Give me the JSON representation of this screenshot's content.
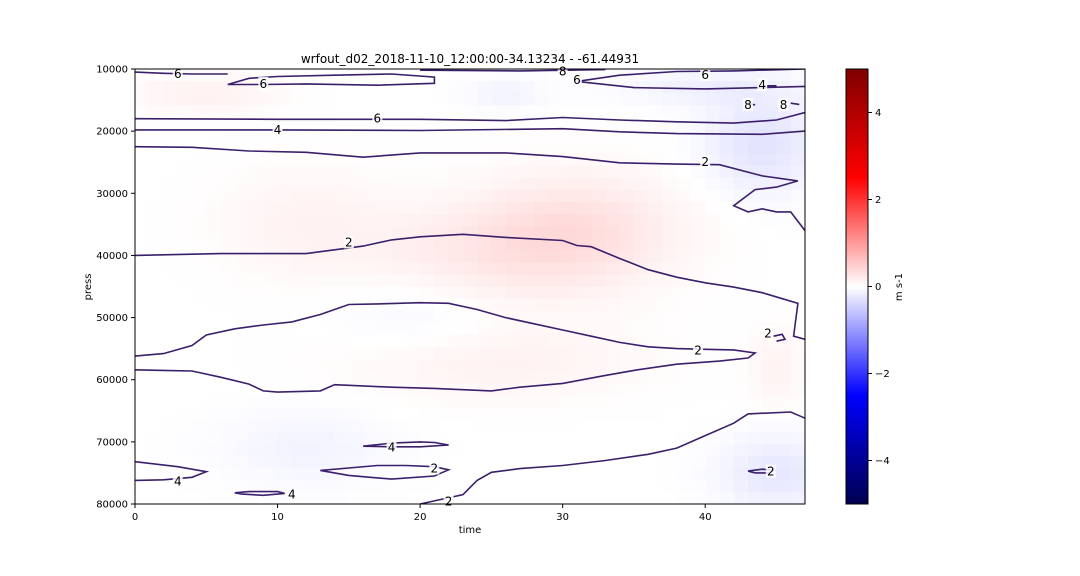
{
  "chart_data": {
    "type": "heatmap",
    "title": "wrfout_d02_2018-11-10_12:00:00-34.13234 - -61.44931",
    "xlabel": "time",
    "ylabel": "press",
    "xlim": [
      0,
      47
    ],
    "ylim": [
      10000,
      80000
    ],
    "y_inverted": true,
    "x_ticks": [
      "0",
      "10",
      "20",
      "30",
      "40"
    ],
    "x_tick_values": [
      0,
      10,
      20,
      30,
      40
    ],
    "y_ticks": [
      "10000",
      "20000",
      "30000",
      "40000",
      "50000",
      "60000",
      "70000",
      "80000"
    ],
    "y_tick_values": [
      10000,
      20000,
      30000,
      40000,
      50000,
      60000,
      70000,
      80000
    ],
    "colormap": "seismic",
    "colorbar": {
      "label": "m s-1",
      "range": [
        -5,
        5
      ],
      "ticks": [
        "4",
        "2",
        "0",
        "−2",
        "−4"
      ],
      "tick_values": [
        4,
        2,
        0,
        -2,
        -4
      ],
      "colors": [
        "#000080",
        "#0000ff",
        "#ffffff",
        "#ff0000",
        "#800000"
      ]
    },
    "grid": false,
    "contour_color": "#3b1f6b",
    "field_blobs": [
      {
        "t": 31,
        "p": 36000,
        "st": 7,
        "sp": 9000,
        "v": 0.75
      },
      {
        "t": 24,
        "p": 40000,
        "st": 8,
        "sp": 8000,
        "v": 0.45
      },
      {
        "t": 12,
        "p": 35000,
        "st": 6,
        "sp": 9000,
        "v": 0.3
      },
      {
        "t": 25,
        "p": 57000,
        "st": 10,
        "sp": 6000,
        "v": 0.35
      },
      {
        "t": 45,
        "p": 58000,
        "st": 2,
        "sp": 6000,
        "v": 0.3
      },
      {
        "t": 5,
        "p": 14000,
        "st": 5,
        "sp": 3000,
        "v": 0.35
      },
      {
        "t": 44,
        "p": 22000,
        "st": 4,
        "sp": 8000,
        "v": -0.7
      },
      {
        "t": 45,
        "p": 75000,
        "st": 4,
        "sp": 6000,
        "v": -0.6
      },
      {
        "t": 20,
        "p": 50000,
        "st": 6,
        "sp": 7000,
        "v": -0.25
      },
      {
        "t": 12,
        "p": 71000,
        "st": 6,
        "sp": 6000,
        "v": -0.3
      },
      {
        "t": 40,
        "p": 13000,
        "st": 6,
        "sp": 3000,
        "v": -0.35
      },
      {
        "t": 26,
        "p": 14000,
        "st": 3,
        "sp": 2500,
        "v": -0.3
      }
    ],
    "contours": [
      {
        "level": 6,
        "points": [
          [
            0,
            10500
          ],
          [
            2,
            10700
          ],
          [
            4,
            10800
          ],
          [
            6.5,
            10800
          ]
        ]
      },
      {
        "level": 6,
        "points": [
          [
            6.5,
            12500
          ],
          [
            8,
            11500
          ],
          [
            10,
            11200
          ],
          [
            14,
            11000
          ],
          [
            18,
            10800
          ],
          [
            21,
            11300
          ],
          [
            21,
            12300
          ],
          [
            17,
            12600
          ],
          [
            12,
            12400
          ],
          [
            9,
            12500
          ],
          [
            6.5,
            12500
          ]
        ]
      },
      {
        "level": 8,
        "points": [
          [
            20,
            10200
          ],
          [
            27,
            10300
          ],
          [
            33,
            10100
          ]
        ]
      },
      {
        "level": 6,
        "points": [
          [
            31,
            12000
          ],
          [
            34,
            11000
          ],
          [
            38,
            10400
          ],
          [
            42,
            10300
          ],
          [
            47,
            10000
          ]
        ]
      },
      {
        "level": 6,
        "points": [
          [
            31,
            12000
          ],
          [
            35,
            13000
          ],
          [
            40,
            13200
          ],
          [
            44,
            13000
          ],
          [
            47,
            12800
          ]
        ]
      },
      {
        "level": 4,
        "points": [
          [
            44,
            12700
          ],
          [
            45,
            12700
          ]
        ]
      },
      {
        "level": 8,
        "points": [
          [
            43,
            15500
          ],
          [
            43.5,
            15800
          ]
        ]
      },
      {
        "level": 8,
        "points": [
          [
            46,
            15500
          ],
          [
            46.6,
            15700
          ]
        ]
      },
      {
        "level": 6,
        "points": [
          [
            0,
            18000
          ],
          [
            10,
            18100
          ],
          [
            20,
            18100
          ],
          [
            26,
            18300
          ],
          [
            30,
            17800
          ],
          [
            34,
            18200
          ],
          [
            38,
            18500
          ],
          [
            42,
            18700
          ],
          [
            45,
            18200
          ],
          [
            47,
            17000
          ]
        ]
      },
      {
        "level": 4,
        "points": [
          [
            0,
            19800
          ],
          [
            10,
            19800
          ],
          [
            20,
            19900
          ],
          [
            30,
            19600
          ],
          [
            34,
            20100
          ],
          [
            38,
            20400
          ],
          [
            44,
            20500
          ],
          [
            47,
            20000
          ]
        ]
      },
      {
        "level": 2,
        "points": [
          [
            0,
            22500
          ],
          [
            4,
            22600
          ],
          [
            8,
            23200
          ],
          [
            12,
            23400
          ],
          [
            16,
            24200
          ],
          [
            20,
            23500
          ],
          [
            26,
            23500
          ],
          [
            30,
            24100
          ],
          [
            34,
            25100
          ],
          [
            38,
            25300
          ],
          [
            41,
            25400
          ],
          [
            44,
            27200
          ],
          [
            46.5,
            28000
          ],
          [
            45,
            29000
          ],
          [
            43.5,
            29400
          ],
          [
            42,
            32000
          ],
          [
            43,
            33000
          ],
          [
            44,
            32500
          ],
          [
            45,
            33000
          ],
          [
            46,
            33000
          ],
          [
            47,
            36000
          ]
        ]
      },
      {
        "level": 2,
        "points": [
          [
            0,
            40000
          ],
          [
            6,
            39700
          ],
          [
            12,
            39700
          ],
          [
            16,
            38500
          ],
          [
            18,
            37500
          ],
          [
            20,
            37000
          ],
          [
            23,
            36600
          ],
          [
            26,
            37100
          ],
          [
            30,
            37600
          ],
          [
            31,
            38400
          ],
          [
            32,
            38600
          ],
          [
            34,
            40500
          ],
          [
            36,
            42300
          ],
          [
            38,
            43500
          ],
          [
            40,
            44400
          ],
          [
            42,
            45100
          ],
          [
            44,
            46000
          ],
          [
            46.5,
            47700
          ],
          [
            46.2,
            53000
          ],
          [
            47,
            53500
          ]
        ]
      },
      {
        "level": 2,
        "points": [
          [
            0,
            56200
          ],
          [
            2,
            55800
          ],
          [
            4,
            54500
          ],
          [
            5,
            52800
          ],
          [
            7,
            51800
          ],
          [
            9,
            51200
          ],
          [
            11,
            50700
          ],
          [
            13,
            49500
          ],
          [
            15,
            47900
          ],
          [
            17,
            47800
          ],
          [
            20,
            47600
          ],
          [
            22,
            47700
          ],
          [
            24,
            48700
          ],
          [
            26,
            50000
          ],
          [
            28,
            51000
          ],
          [
            30,
            52000
          ],
          [
            32,
            53000
          ],
          [
            34,
            54000
          ],
          [
            36,
            54700
          ],
          [
            38,
            55000
          ],
          [
            40,
            55100
          ],
          [
            42,
            55200
          ],
          [
            43.5,
            55700
          ],
          [
            43,
            56500
          ],
          [
            41,
            57000
          ],
          [
            38,
            57500
          ],
          [
            35,
            58500
          ],
          [
            33,
            59300
          ],
          [
            30,
            60600
          ],
          [
            27,
            61200
          ],
          [
            25,
            61800
          ],
          [
            21,
            61400
          ],
          [
            18,
            61200
          ],
          [
            15,
            60900
          ],
          [
            14,
            60800
          ],
          [
            13,
            61800
          ],
          [
            10,
            62000
          ],
          [
            9,
            61800
          ],
          [
            8,
            60700
          ],
          [
            6,
            59600
          ],
          [
            4,
            58600
          ],
          [
            2,
            58500
          ],
          [
            0,
            58400
          ]
        ]
      },
      {
        "level": 2,
        "points": [
          [
            44.8,
            53000
          ],
          [
            45.4,
            52700
          ],
          [
            45.6,
            53500
          ],
          [
            45,
            53800
          ]
        ]
      },
      {
        "level": 2,
        "points": [
          [
            47,
            66200
          ],
          [
            46,
            65200
          ],
          [
            43,
            65500
          ],
          [
            42,
            67000
          ],
          [
            40,
            69000
          ],
          [
            38,
            71000
          ],
          [
            36,
            72000
          ],
          [
            33,
            73000
          ],
          [
            30,
            73800
          ],
          [
            27,
            74300
          ],
          [
            25,
            74900
          ],
          [
            24,
            76200
          ],
          [
            23,
            78500
          ],
          [
            21,
            79500
          ],
          [
            20,
            80000
          ]
        ]
      },
      {
        "level": 4,
        "points": [
          [
            16,
            70700
          ],
          [
            18,
            70200
          ],
          [
            20,
            70000
          ],
          [
            21,
            70100
          ],
          [
            22,
            70500
          ],
          [
            20,
            70800
          ],
          [
            18,
            70800
          ],
          [
            16,
            70700
          ]
        ]
      },
      {
        "level": 2,
        "points": [
          [
            13,
            74600
          ],
          [
            15,
            74200
          ],
          [
            17,
            73800
          ],
          [
            19,
            73800
          ],
          [
            21,
            74000
          ],
          [
            22,
            74500
          ],
          [
            21,
            75500
          ],
          [
            18,
            76000
          ],
          [
            15,
            75400
          ],
          [
            13,
            74600
          ]
        ]
      },
      {
        "level": 4,
        "points": [
          [
            0,
            73200
          ],
          [
            3,
            74000
          ],
          [
            5,
            74800
          ],
          [
            4,
            75700
          ],
          [
            2,
            76100
          ],
          [
            0,
            76200
          ]
        ]
      },
      {
        "level": 4,
        "points": [
          [
            7,
            78200
          ],
          [
            8,
            78000
          ],
          [
            10,
            78000
          ],
          [
            10.5,
            78300
          ],
          [
            9,
            78600
          ],
          [
            7.5,
            78400
          ],
          [
            7,
            78200
          ]
        ]
      },
      {
        "level": 2,
        "points": [
          [
            43,
            74700
          ],
          [
            44,
            74400
          ],
          [
            44.8,
            74600
          ],
          [
            44.5,
            75000
          ],
          [
            43.5,
            75000
          ],
          [
            43,
            74700
          ]
        ]
      }
    ],
    "contour_labels": [
      {
        "text": "6",
        "x": 3,
        "y": 10800
      },
      {
        "text": "6",
        "x": 9,
        "y": 12400
      },
      {
        "text": "8",
        "x": 30,
        "y": 10400
      },
      {
        "text": "6",
        "x": 31,
        "y": 11800
      },
      {
        "text": "6",
        "x": 40,
        "y": 11000
      },
      {
        "text": "4",
        "x": 44,
        "y": 12600
      },
      {
        "text": "8",
        "x": 43,
        "y": 15800
      },
      {
        "text": "8",
        "x": 45.5,
        "y": 15800
      },
      {
        "text": "6",
        "x": 17,
        "y": 18000
      },
      {
        "text": "4",
        "x": 10,
        "y": 19800
      },
      {
        "text": "2",
        "x": 40,
        "y": 25000
      },
      {
        "text": "2",
        "x": 15,
        "y": 37900
      },
      {
        "text": "2",
        "x": 39.5,
        "y": 55300
      },
      {
        "text": "2",
        "x": 44.4,
        "y": 52600
      },
      {
        "text": "4",
        "x": 18,
        "y": 70900
      },
      {
        "text": "2",
        "x": 21,
        "y": 74300
      },
      {
        "text": "4",
        "x": 3,
        "y": 76400
      },
      {
        "text": "4",
        "x": 11,
        "y": 78500
      },
      {
        "text": "2",
        "x": 44.6,
        "y": 74800
      },
      {
        "text": "2",
        "x": 22,
        "y": 79600
      }
    ]
  }
}
